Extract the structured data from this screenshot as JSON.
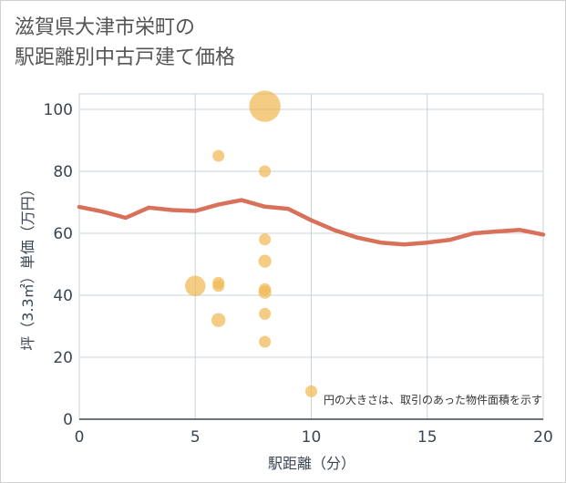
{
  "title_line1": "滋賀県大津市栄町の",
  "title_line2": "駅距離別中古戸建て価格",
  "chart_data": {
    "type": "scatter",
    "title": "滋賀県大津市栄町の駅距離別中古戸建て価格",
    "xlabel": "駅距離（分）",
    "ylabel": "坪（3.3㎡）単価（万円）",
    "xlim": [
      0,
      20
    ],
    "ylim": [
      0,
      105
    ],
    "xticks": [
      0,
      5,
      10,
      15,
      20
    ],
    "yticks": [
      0,
      20,
      40,
      60,
      80,
      100
    ],
    "grid": true,
    "note": "円の大きさは、取引のあった物件面積を示す",
    "colors": {
      "points": "#f0b955",
      "trend": "#d9705a"
    },
    "points": [
      {
        "x": 5,
        "y": 43,
        "size": 3
      },
      {
        "x": 6,
        "y": 85,
        "size": 1
      },
      {
        "x": 6,
        "y": 44,
        "size": 1
      },
      {
        "x": 6,
        "y": 43,
        "size": 1
      },
      {
        "x": 6,
        "y": 32,
        "size": 1.4
      },
      {
        "x": 8,
        "y": 101,
        "size": 7
      },
      {
        "x": 8,
        "y": 80,
        "size": 1
      },
      {
        "x": 8,
        "y": 58,
        "size": 1
      },
      {
        "x": 8,
        "y": 51,
        "size": 1.2
      },
      {
        "x": 8,
        "y": 42,
        "size": 1
      },
      {
        "x": 8,
        "y": 41,
        "size": 1.2
      },
      {
        "x": 8,
        "y": 34,
        "size": 1
      },
      {
        "x": 8,
        "y": 25,
        "size": 1
      },
      {
        "x": 10,
        "y": 9,
        "size": 1
      }
    ],
    "trend": {
      "x": [
        0,
        1,
        2,
        3,
        4,
        5,
        6,
        7,
        8,
        9,
        10,
        11,
        12,
        13,
        14,
        15,
        16,
        17,
        18,
        19,
        20
      ],
      "y": [
        68.5,
        67,
        65,
        68.3,
        67.5,
        67.2,
        69.3,
        70.7,
        68.6,
        67.9,
        64.2,
        61,
        58.6,
        57,
        56.4,
        57,
        57.9,
        60,
        60.6,
        61.1,
        59.6
      ]
    }
  }
}
